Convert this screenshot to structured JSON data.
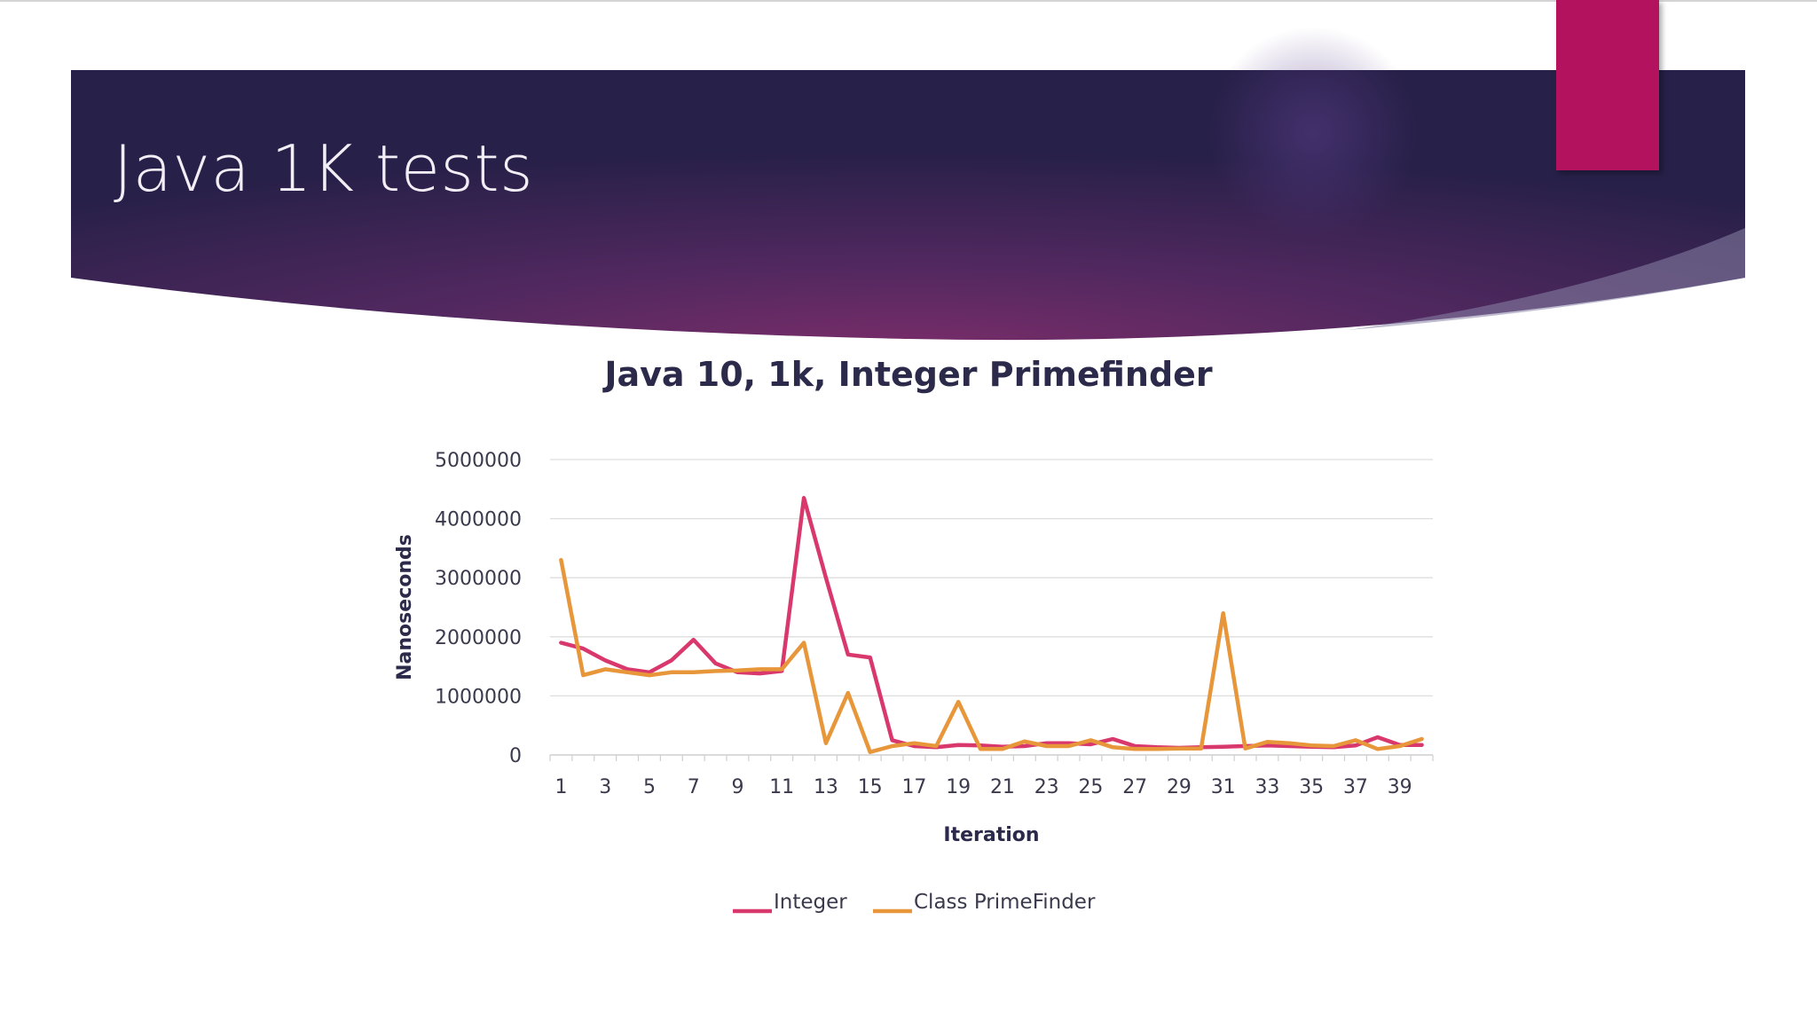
{
  "slide": {
    "title": "Java 1K tests"
  },
  "colors": {
    "header_dark": "#2a2250",
    "header_mid": "#6d2c63",
    "accent_tab": "#b3135e",
    "series_integer": "#d9386d",
    "series_class": "#e8963a",
    "title_text": "#2c2a4a"
  },
  "chart_data": {
    "type": "line",
    "title": "Java 10, 1k, Integer Primefinder",
    "xlabel": "Iteration",
    "ylabel": "Nanoseconds",
    "ylim": [
      0,
      5000000
    ],
    "yticks": [
      "0",
      "1000000",
      "2000000",
      "3000000",
      "4000000",
      "5000000"
    ],
    "xticks": [
      "1",
      "3",
      "5",
      "7",
      "9",
      "11",
      "13",
      "15",
      "17",
      "19",
      "21",
      "23",
      "25",
      "27",
      "29",
      "31",
      "33",
      "35",
      "37",
      "39"
    ],
    "grid": true,
    "legend": "bottom",
    "x": [
      1,
      2,
      3,
      4,
      5,
      6,
      7,
      8,
      9,
      10,
      11,
      12,
      13,
      14,
      15,
      16,
      17,
      18,
      19,
      20,
      21,
      22,
      23,
      24,
      25,
      26,
      27,
      28,
      29,
      30,
      31,
      32,
      33,
      34,
      35,
      36,
      37,
      38,
      39,
      40
    ],
    "series": [
      {
        "name": "Integer",
        "color": "#d9386d",
        "values": [
          1900000,
          1800000,
          1600000,
          1450000,
          1400000,
          1600000,
          1950000,
          1550000,
          1400000,
          1380000,
          1420000,
          4350000,
          3000000,
          1700000,
          1650000,
          250000,
          150000,
          130000,
          170000,
          160000,
          140000,
          150000,
          200000,
          200000,
          180000,
          270000,
          150000,
          130000,
          120000,
          130000,
          140000,
          150000,
          160000,
          150000,
          140000,
          130000,
          160000,
          300000,
          170000,
          170000
        ]
      },
      {
        "name": "Class PrimeFinder",
        "color": "#e8963a",
        "values": [
          3300000,
          1350000,
          1450000,
          1400000,
          1350000,
          1400000,
          1400000,
          1420000,
          1430000,
          1450000,
          1450000,
          1900000,
          200000,
          1050000,
          50000,
          150000,
          200000,
          150000,
          900000,
          100000,
          100000,
          230000,
          150000,
          150000,
          250000,
          130000,
          100000,
          100000,
          110000,
          110000,
          2400000,
          110000,
          220000,
          200000,
          160000,
          150000,
          250000,
          100000,
          150000,
          270000
        ]
      }
    ]
  }
}
